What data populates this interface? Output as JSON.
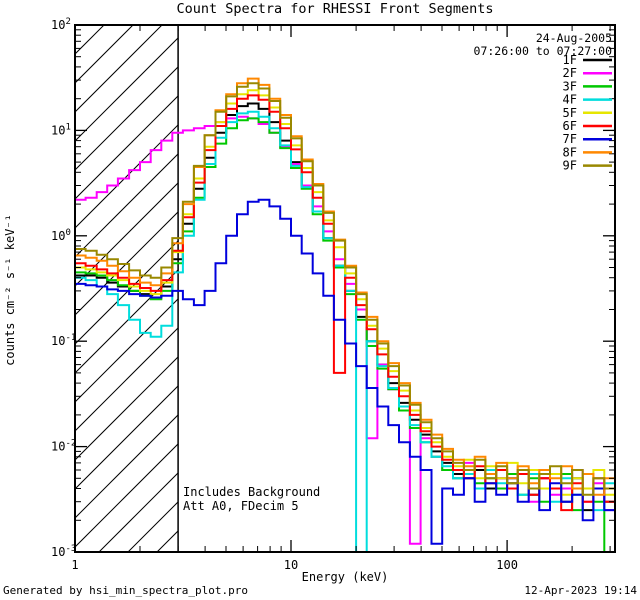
{
  "title": "Count Spectra for RHESSI Front Segments",
  "annotations": {
    "date": "24-Aug-2005",
    "time_range": "07:26:00 to 07:27:00",
    "note1": "Includes Background",
    "note2": "Att A0, FDecim 5"
  },
  "footer": {
    "left": "Generated by hsi_min_spectra_plot.pro",
    "right": "12-Apr-2023 19:14"
  },
  "colors": {
    "annotation_text": "#8b1a1a",
    "frame": "#000000",
    "hatch": "#000000",
    "background": "#ffffff"
  },
  "chart_data": {
    "type": "line",
    "step": true,
    "x_scale": "log",
    "y_scale": "log",
    "grid": false,
    "legend_position": "top-right",
    "x_label": "Energy (keV)",
    "y_label": "counts cm⁻² s⁻¹ keV⁻¹",
    "x_range": [
      1,
      316
    ],
    "y_range": [
      0.001,
      100
    ],
    "hatch_region": [
      1,
      3
    ],
    "x_ticks": [
      [
        1,
        "1"
      ],
      [
        10,
        "10"
      ],
      [
        100,
        "100"
      ]
    ],
    "y_ticks": [
      [
        100,
        "2"
      ],
      [
        10,
        "1"
      ],
      [
        1,
        "0"
      ],
      [
        0.1,
        "-1"
      ],
      [
        0.01,
        "-2"
      ],
      [
        0.001,
        "-3"
      ]
    ],
    "energies": [
      1.0,
      1.12,
      1.26,
      1.41,
      1.58,
      1.78,
      2.0,
      2.24,
      2.51,
      2.82,
      3.16,
      3.55,
      3.98,
      4.47,
      5.01,
      5.62,
      6.31,
      7.08,
      7.94,
      8.91,
      10.0,
      11.2,
      12.6,
      14.1,
      15.8,
      17.8,
      20.0,
      22.4,
      25.1,
      28.2,
      31.6,
      35.5,
      39.8,
      44.7,
      50.1,
      56.2,
      63.1,
      70.8,
      79.4,
      89.1,
      100,
      112,
      126,
      141,
      158,
      178,
      200,
      224,
      251,
      282,
      316
    ],
    "series": [
      {
        "name": "1F",
        "color": "#000000",
        "values": [
          0.42,
          0.42,
          0.4,
          0.36,
          0.33,
          0.3,
          0.28,
          0.26,
          0.33,
          0.6,
          1.3,
          2.8,
          5.5,
          9.5,
          14,
          17,
          18,
          16,
          12,
          8.0,
          5.0,
          3.0,
          1.7,
          0.95,
          0.52,
          0.3,
          0.17,
          0.1,
          0.06,
          0.04,
          0.026,
          0.018,
          0.013,
          0.009,
          0.007,
          0.0055,
          0.005,
          0.006,
          0.004,
          0.005,
          0.0045,
          0.006,
          0.0035,
          0.005,
          0.004,
          0.003,
          0.005,
          0.0025,
          0.004,
          0.003,
          0.002
        ]
      },
      {
        "name": "2F",
        "color": "#ff00ff",
        "values": [
          2.2,
          2.3,
          2.6,
          3.0,
          3.5,
          4.2,
          5.0,
          6.5,
          8.0,
          9.5,
          10.0,
          10.5,
          11.0,
          12.0,
          13.0,
          13.5,
          13.0,
          11.5,
          9.5,
          7.0,
          4.8,
          3.0,
          1.9,
          1.1,
          0.6,
          0.35,
          0.2,
          0.012,
          0.06,
          0.035,
          0.022,
          0.0012,
          0.012,
          0.008,
          0.006,
          0.005,
          0.007,
          0.004,
          0.006,
          0.005,
          0.004,
          0.006,
          0.003,
          0.005,
          0.0035,
          0.004,
          0.006,
          0.003,
          0.0045,
          0.0025,
          0.003
        ]
      },
      {
        "name": "3F",
        "color": "#00c800",
        "values": [
          0.45,
          0.44,
          0.42,
          0.38,
          0.34,
          0.3,
          0.27,
          0.25,
          0.3,
          0.55,
          1.1,
          2.3,
          4.5,
          7.5,
          10.5,
          12.5,
          13.0,
          12.0,
          9.5,
          6.8,
          4.4,
          2.8,
          1.6,
          0.9,
          0.5,
          0.28,
          0.16,
          0.09,
          0.055,
          0.035,
          0.022,
          0.015,
          0.011,
          0.008,
          0.006,
          0.005,
          0.006,
          0.0045,
          0.005,
          0.004,
          0.0055,
          0.0035,
          0.005,
          0.003,
          0.004,
          0.0055,
          0.0025,
          0.004,
          0.003,
          0.001,
          0.0035
        ]
      },
      {
        "name": "4F",
        "color": "#00dddd",
        "values": [
          0.4,
          0.38,
          0.33,
          0.28,
          0.22,
          0.16,
          0.12,
          0.11,
          0.14,
          0.45,
          1.0,
          2.2,
          4.8,
          8.5,
          12.0,
          14.5,
          15.0,
          13.5,
          10.5,
          7.2,
          4.6,
          2.9,
          1.7,
          0.95,
          0.52,
          0.3,
          0.001,
          0.1,
          0.058,
          0.036,
          0.024,
          0.016,
          0.011,
          0.008,
          0.0065,
          0.005,
          0.0055,
          0.004,
          0.006,
          0.0045,
          0.005,
          0.0035,
          0.0055,
          0.004,
          0.003,
          0.005,
          0.0035,
          0.004,
          0.0025,
          0.0045,
          0.003
        ]
      },
      {
        "name": "5F",
        "color": "#e6e600",
        "values": [
          0.5,
          0.48,
          0.45,
          0.42,
          0.38,
          0.33,
          0.3,
          0.28,
          0.36,
          0.7,
          1.6,
          3.5,
          7.0,
          12.0,
          18.0,
          22.0,
          24.0,
          21.5,
          16.5,
          11.5,
          7.2,
          4.4,
          2.6,
          1.4,
          0.78,
          0.44,
          0.25,
          0.14,
          0.085,
          0.052,
          0.034,
          0.022,
          0.015,
          0.011,
          0.008,
          0.0065,
          0.0075,
          0.005,
          0.0065,
          0.005,
          0.007,
          0.0045,
          0.006,
          0.004,
          0.0055,
          0.0035,
          0.005,
          0.004,
          0.006,
          0.0035,
          0.0045
        ]
      },
      {
        "name": "6F",
        "color": "#ff0000",
        "values": [
          0.55,
          0.52,
          0.48,
          0.44,
          0.4,
          0.35,
          0.32,
          0.3,
          0.38,
          0.72,
          1.5,
          3.2,
          6.5,
          11.0,
          16.0,
          20.0,
          21.5,
          19.5,
          15.0,
          10.5,
          6.6,
          4.0,
          2.3,
          1.3,
          0.05,
          0.4,
          0.22,
          0.13,
          0.075,
          0.046,
          0.03,
          0.02,
          0.014,
          0.01,
          0.0075,
          0.006,
          0.005,
          0.0065,
          0.0045,
          0.006,
          0.004,
          0.0055,
          0.0035,
          0.005,
          0.004,
          0.0025,
          0.0045,
          0.003,
          0.005,
          0.003,
          0.004
        ]
      },
      {
        "name": "7F",
        "color": "#0000dd",
        "values": [
          0.35,
          0.34,
          0.33,
          0.31,
          0.3,
          0.28,
          0.27,
          0.26,
          0.27,
          0.3,
          0.25,
          0.22,
          0.3,
          0.55,
          1.0,
          1.6,
          2.1,
          2.2,
          1.9,
          1.45,
          1.0,
          0.68,
          0.44,
          0.27,
          0.16,
          0.095,
          0.058,
          0.036,
          0.024,
          0.016,
          0.011,
          0.008,
          0.006,
          0.0012,
          0.004,
          0.0035,
          0.005,
          0.003,
          0.0045,
          0.0035,
          0.005,
          0.003,
          0.004,
          0.0025,
          0.0045,
          0.003,
          0.0035,
          0.002,
          0.004,
          0.0025,
          0.003
        ]
      },
      {
        "name": "8F",
        "color": "#ff8800",
        "values": [
          0.65,
          0.62,
          0.58,
          0.52,
          0.46,
          0.4,
          0.36,
          0.34,
          0.44,
          0.85,
          2.0,
          4.5,
          9.0,
          15.5,
          22.0,
          28.0,
          31.0,
          27.0,
          20.0,
          14.0,
          8.8,
          5.3,
          3.1,
          1.7,
          0.92,
          0.52,
          0.29,
          0.17,
          0.1,
          0.062,
          0.04,
          0.026,
          0.018,
          0.013,
          0.0095,
          0.0075,
          0.0065,
          0.008,
          0.0055,
          0.007,
          0.005,
          0.0065,
          0.0045,
          0.006,
          0.005,
          0.0065,
          0.004,
          0.0055,
          0.0035,
          0.005,
          0.004
        ]
      },
      {
        "name": "9F",
        "color": "#998800",
        "values": [
          0.75,
          0.72,
          0.66,
          0.6,
          0.54,
          0.47,
          0.42,
          0.4,
          0.5,
          0.95,
          2.1,
          4.6,
          9.0,
          15.0,
          21.0,
          26.0,
          28.0,
          25.0,
          19.0,
          13.2,
          8.4,
          5.1,
          3.0,
          1.65,
          0.9,
          0.5,
          0.28,
          0.16,
          0.095,
          0.058,
          0.038,
          0.025,
          0.017,
          0.012,
          0.009,
          0.007,
          0.006,
          0.0075,
          0.005,
          0.0065,
          0.0045,
          0.006,
          0.004,
          0.0055,
          0.0065,
          0.0045,
          0.006,
          0.0035,
          0.005,
          0.004,
          0.0045
        ]
      }
    ]
  }
}
